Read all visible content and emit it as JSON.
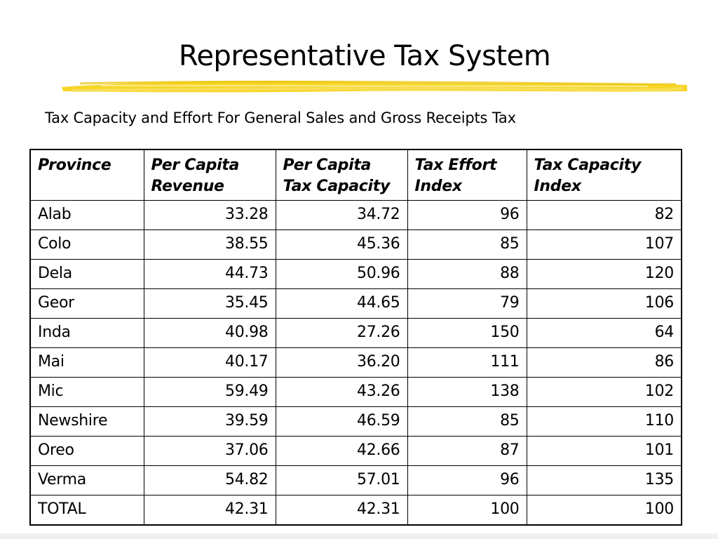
{
  "slide": {
    "title": "Representative Tax System",
    "subtitle": "Tax Capacity and Effort For General Sales and Gross Receipts Tax",
    "highlight_color": "#f5d20f"
  },
  "table": {
    "headers": [
      "Province",
      "Per Capita Revenue",
      "Per Capita Tax Capacity",
      "Tax Effort Index",
      "Tax Capacity Index"
    ],
    "rows": [
      [
        "Alab",
        "33.28",
        "34.72",
        "96",
        "82"
      ],
      [
        "Colo",
        "38.55",
        "45.36",
        "85",
        "107"
      ],
      [
        "Dela",
        "44.73",
        "50.96",
        "88",
        "120"
      ],
      [
        "Geor",
        "35.45",
        "44.65",
        "79",
        "106"
      ],
      [
        "Inda",
        "40.98",
        "27.26",
        "150",
        "64"
      ],
      [
        "Mai",
        "40.17",
        "36.20",
        "111",
        "86"
      ],
      [
        "Mic",
        "59.49",
        "43.26",
        "138",
        "102"
      ],
      [
        "Newshire",
        "39.59",
        "46.59",
        "85",
        "110"
      ],
      [
        "Oreo",
        "37.06",
        "42.66",
        "87",
        "101"
      ],
      [
        "Verma",
        "54.82",
        "57.01",
        "96",
        "135"
      ],
      [
        "TOTAL",
        "42.31",
        "42.31",
        "100",
        "100"
      ]
    ]
  }
}
